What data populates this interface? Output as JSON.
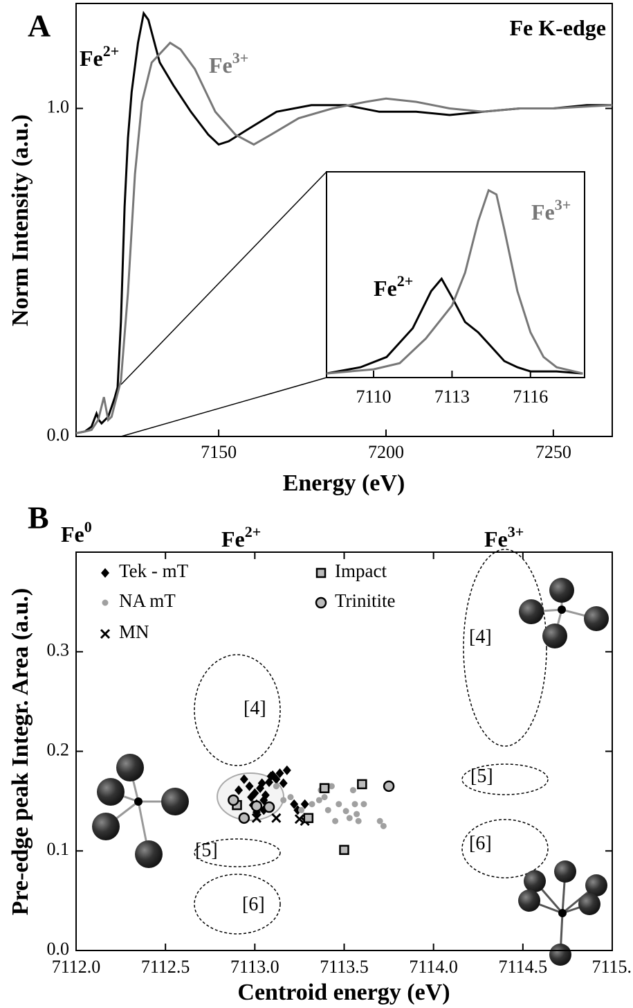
{
  "chart_data": [
    {
      "type": "line",
      "panel_label": "A",
      "xlabel": "Energy (eV)",
      "ylabel": "Norm Intensity (a.u.)",
      "xlim": [
        7107.4,
        7267.6
      ],
      "ylim": [
        0,
        1.32
      ],
      "xticks": [
        7150,
        7200,
        7250
      ],
      "yticks": [
        {
          "value": 0,
          "label": "0.0"
        },
        {
          "value": 1,
          "label": "1.0"
        }
      ],
      "annotations": [
        {
          "text": "Fe K-edge"
        },
        {
          "text": "Fe",
          "sup": "2+",
          "color": "#000000"
        },
        {
          "text": "Fe",
          "sup": "3+",
          "color": "#777777"
        }
      ],
      "series": [
        {
          "color": "#000000",
          "x": [
            7107.4,
            7110,
            7112,
            7113.5,
            7114.2,
            7115,
            7116,
            7117,
            7118,
            7119,
            7119.8,
            7120.8,
            7121.9,
            7122.9,
            7124,
            7125.9,
            7127.6,
            7129,
            7132.4,
            7136.5,
            7141.7,
            7146.9,
            7150,
            7153,
            7159.3,
            7167.3,
            7177.7,
            7188,
            7198,
            7209,
            7219,
            7229,
            7240,
            7250,
            7260,
            7267.6
          ],
          "values": [
            0.01,
            0.015,
            0.03,
            0.07,
            0.05,
            0.04,
            0.05,
            0.06,
            0.09,
            0.12,
            0.15,
            0.35,
            0.7,
            0.91,
            1.05,
            1.2,
            1.29,
            1.27,
            1.14,
            1.07,
            0.99,
            0.92,
            0.89,
            0.9,
            0.94,
            0.99,
            1.01,
            1.01,
            0.99,
            0.99,
            0.98,
            0.99,
            1.0,
            1.0,
            1.01,
            1.01
          ]
        },
        {
          "color": "#777777",
          "x": [
            7107.4,
            7110,
            7112,
            7114,
            7115.7,
            7117,
            7118,
            7119,
            7120.8,
            7122.9,
            7125,
            7127.1,
            7130,
            7135.5,
            7138.6,
            7142.9,
            7149,
            7155,
            7160.5,
            7165.6,
            7173.9,
            7184,
            7194,
            7200,
            7209,
            7219,
            7229,
            7240,
            7250,
            7267.6
          ],
          "values": [
            0.01,
            0.015,
            0.02,
            0.05,
            0.12,
            0.05,
            0.06,
            0.1,
            0.17,
            0.44,
            0.8,
            1.02,
            1.14,
            1.2,
            1.18,
            1.12,
            0.99,
            0.92,
            0.89,
            0.92,
            0.97,
            1.0,
            1.02,
            1.03,
            1.02,
            1.0,
            0.99,
            1.0,
            1.0,
            1.01
          ]
        }
      ]
    },
    {
      "type": "line",
      "xlim": [
        7108.2,
        7118.07
      ],
      "ylim": [
        0,
        1
      ],
      "xticks": [
        7110,
        7113,
        7116
      ],
      "annotations": [
        {
          "text": "Fe",
          "sup": "2+",
          "color": "#000000"
        },
        {
          "text": "Fe",
          "sup": "3+",
          "color": "#777777"
        }
      ],
      "series": [
        {
          "color": "#000000",
          "x": [
            7108.2,
            7109.5,
            7110.5,
            7111.5,
            7112.2,
            7112.6,
            7113,
            7113.5,
            7114,
            7114.5,
            7115,
            7115.5,
            7116,
            7117,
            7118
          ],
          "values": [
            0.02,
            0.05,
            0.1,
            0.24,
            0.42,
            0.48,
            0.39,
            0.27,
            0.22,
            0.15,
            0.08,
            0.05,
            0.03,
            0.03,
            0.02
          ]
        },
        {
          "color": "#777777",
          "x": [
            7108.2,
            7110,
            7111,
            7112,
            7112.5,
            7113,
            7113.5,
            7114,
            7114.4,
            7114.7,
            7115,
            7115.5,
            7116,
            7116.5,
            7117,
            7118
          ],
          "values": [
            0.02,
            0.04,
            0.07,
            0.19,
            0.27,
            0.35,
            0.51,
            0.76,
            0.91,
            0.89,
            0.72,
            0.42,
            0.22,
            0.1,
            0.05,
            0.02
          ]
        }
      ]
    },
    {
      "type": "scatter",
      "panel_label": "B",
      "xlabel": "Centroid energy (eV)",
      "ylabel": "Pre-edge peak Integr. Area (a.u.)",
      "xlim": [
        7112,
        7115
      ],
      "ylim": [
        0,
        0.4
      ],
      "xticks": [
        {
          "value": 7112,
          "label": "7112.0"
        },
        {
          "value": 7112.5,
          "label": "7112.5"
        },
        {
          "value": 7113,
          "label": "7113.0"
        },
        {
          "value": 7113.5,
          "label": "7113.5"
        },
        {
          "value": 7114,
          "label": "7114.0"
        },
        {
          "value": 7114.5,
          "label": "7114.5"
        },
        {
          "value": 7115,
          "label": "7115."
        }
      ],
      "yticks": [
        {
          "value": 0,
          "label": "0.0"
        },
        0.1,
        0.2,
        0.3
      ],
      "annotations": [
        {
          "text": "Fe",
          "sup": "0"
        },
        {
          "text": "Fe",
          "sup": "2+"
        },
        {
          "text": "Fe",
          "sup": "3+"
        },
        {
          "text": "[4]"
        },
        {
          "text": "[5]"
        },
        {
          "text": "[6]"
        },
        {
          "text": "[4]"
        },
        {
          "text": "[5]"
        },
        {
          "text": "[6]"
        }
      ],
      "series": [
        {
          "name": "Tek - mT",
          "marker": "diamond",
          "color": "#000000",
          "x": [
            7112.91,
            7112.94,
            7112.97,
            7112.98,
            7113.0,
            7113.01,
            7113.03,
            7113.04,
            7113.05,
            7113.06,
            7113.08,
            7113.09,
            7113.1,
            7113.12,
            7113.14,
            7113.16,
            7113.18,
            7113.22,
            7113.24,
            7113.28,
            7112.99,
            7113.01,
            7113.05
          ],
          "values": [
            0.161,
            0.172,
            0.165,
            0.154,
            0.158,
            0.147,
            0.163,
            0.168,
            0.151,
            0.156,
            0.169,
            0.175,
            0.176,
            0.172,
            0.178,
            0.168,
            0.181,
            0.147,
            0.141,
            0.147,
            0.146,
            0.139,
            0.141
          ]
        },
        {
          "name": "NA mT",
          "marker": "dot",
          "color": "#a0a0a0",
          "x": [
            7113.12,
            7113.16,
            7113.2,
            7113.26,
            7113.32,
            7113.36,
            7113.39,
            7113.41,
            7113.45,
            7113.47,
            7113.51,
            7113.53,
            7113.55,
            7113.56,
            7113.57,
            7113.58,
            7113.61,
            7113.7,
            7113.72,
            7113.37,
            7113.43
          ],
          "values": [
            0.165,
            0.151,
            0.154,
            0.141,
            0.147,
            0.151,
            0.154,
            0.141,
            0.13,
            0.147,
            0.14,
            0.133,
            0.161,
            0.147,
            0.137,
            0.13,
            0.147,
            0.13,
            0.125,
            0.161,
            0.165
          ]
        },
        {
          "name": "MN",
          "marker": "x",
          "color": "#000000",
          "x": [
            7113.01,
            7113.12,
            7113.25,
            7113.28
          ],
          "values": [
            0.133,
            0.133,
            0.132,
            0.13
          ]
        },
        {
          "name": "Impact",
          "marker": "square",
          "color": "#bbbbbb",
          "x": [
            7112.9,
            7113.3,
            7113.39,
            7113.5,
            7113.6
          ],
          "values": [
            0.146,
            0.133,
            0.163,
            0.101,
            0.167
          ]
        },
        {
          "name": "Trinitite",
          "marker": "circle",
          "color": "#bbbbbb",
          "x": [
            7112.88,
            7112.94,
            7113.01,
            7113.08,
            7113.75
          ],
          "values": [
            0.151,
            0.133,
            0.145,
            0.144,
            0.165
          ]
        }
      ]
    }
  ]
}
